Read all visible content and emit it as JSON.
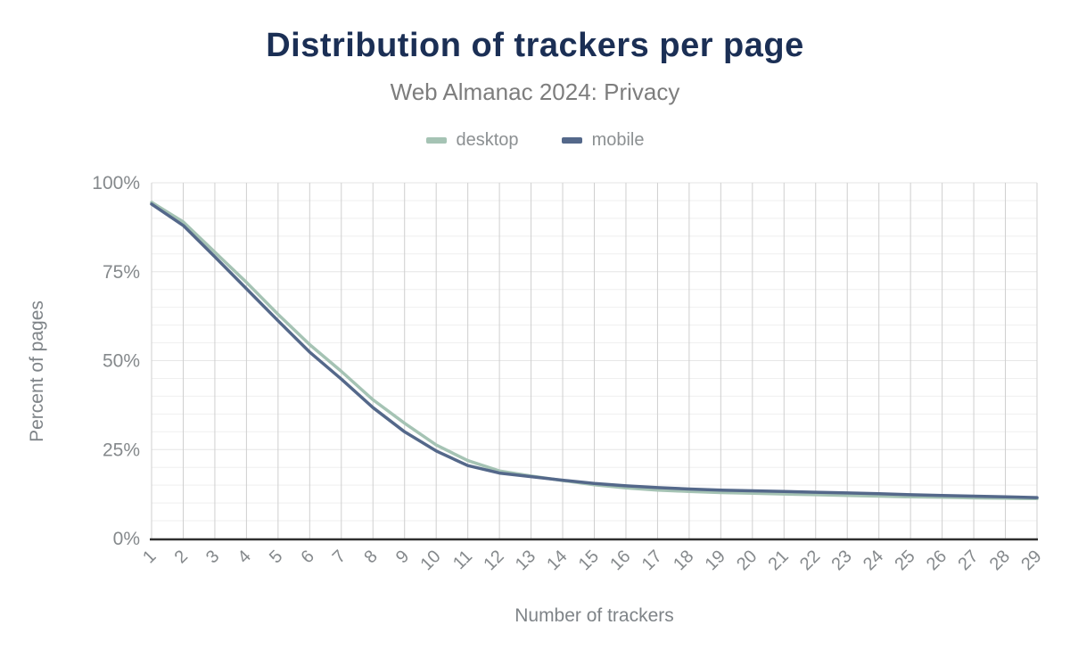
{
  "header": {
    "title": "Distribution of trackers per page",
    "subtitle": "Web Almanac 2024: Privacy"
  },
  "legend": {
    "items": [
      {
        "label": "desktop",
        "color": "#a5c3b4"
      },
      {
        "label": "mobile",
        "color": "#54688a"
      }
    ]
  },
  "chart_data": {
    "type": "line",
    "title": "Distribution of trackers per page",
    "subtitle": "Web Almanac 2024: Privacy",
    "xlabel": "Number of trackers",
    "ylabel": "Percent of pages",
    "x": [
      1,
      2,
      3,
      4,
      5,
      6,
      7,
      8,
      9,
      10,
      11,
      12,
      13,
      14,
      15,
      16,
      17,
      18,
      19,
      20,
      21,
      22,
      23,
      24,
      25,
      26,
      27,
      28,
      29
    ],
    "series": [
      {
        "name": "desktop",
        "color": "#a5c3b4",
        "values": [
          94.5,
          89.0,
          80.5,
          72.0,
          63.0,
          54.5,
          47.0,
          39.0,
          32.4,
          26.3,
          21.9,
          19.0,
          17.6,
          16.3,
          15.1,
          14.2,
          13.6,
          13.2,
          12.9,
          12.7,
          12.5,
          12.3,
          12.1,
          11.9,
          11.7,
          11.6,
          11.4,
          11.3,
          11.2
        ]
      },
      {
        "name": "mobile",
        "color": "#54688a",
        "values": [
          94.0,
          88.0,
          79.2,
          70.2,
          61.2,
          52.4,
          44.8,
          36.8,
          30.0,
          24.6,
          20.5,
          18.4,
          17.4,
          16.4,
          15.5,
          14.8,
          14.3,
          13.9,
          13.6,
          13.4,
          13.2,
          13.0,
          12.8,
          12.6,
          12.3,
          12.1,
          11.9,
          11.7,
          11.5
        ]
      }
    ],
    "ylim": [
      0,
      100
    ],
    "yticks": [
      0,
      25,
      50,
      75,
      100
    ],
    "ytick_labels": [
      "0%",
      "25%",
      "50%",
      "75%",
      "100%"
    ],
    "minor_grid_step": 5,
    "grid": true,
    "legend_position": "top"
  },
  "colors": {
    "title": "#1b2f55",
    "subtitle": "#7d7d7d",
    "axis_text": "#7f8488",
    "tick_text": "#85898c",
    "grid_vertical": "#cfcfcf",
    "grid_horizontal_minor": "#efefef",
    "grid_horizontal_major": "#e6e6e6",
    "axis_line": "#2f2f2f",
    "background": "#ffffff"
  }
}
